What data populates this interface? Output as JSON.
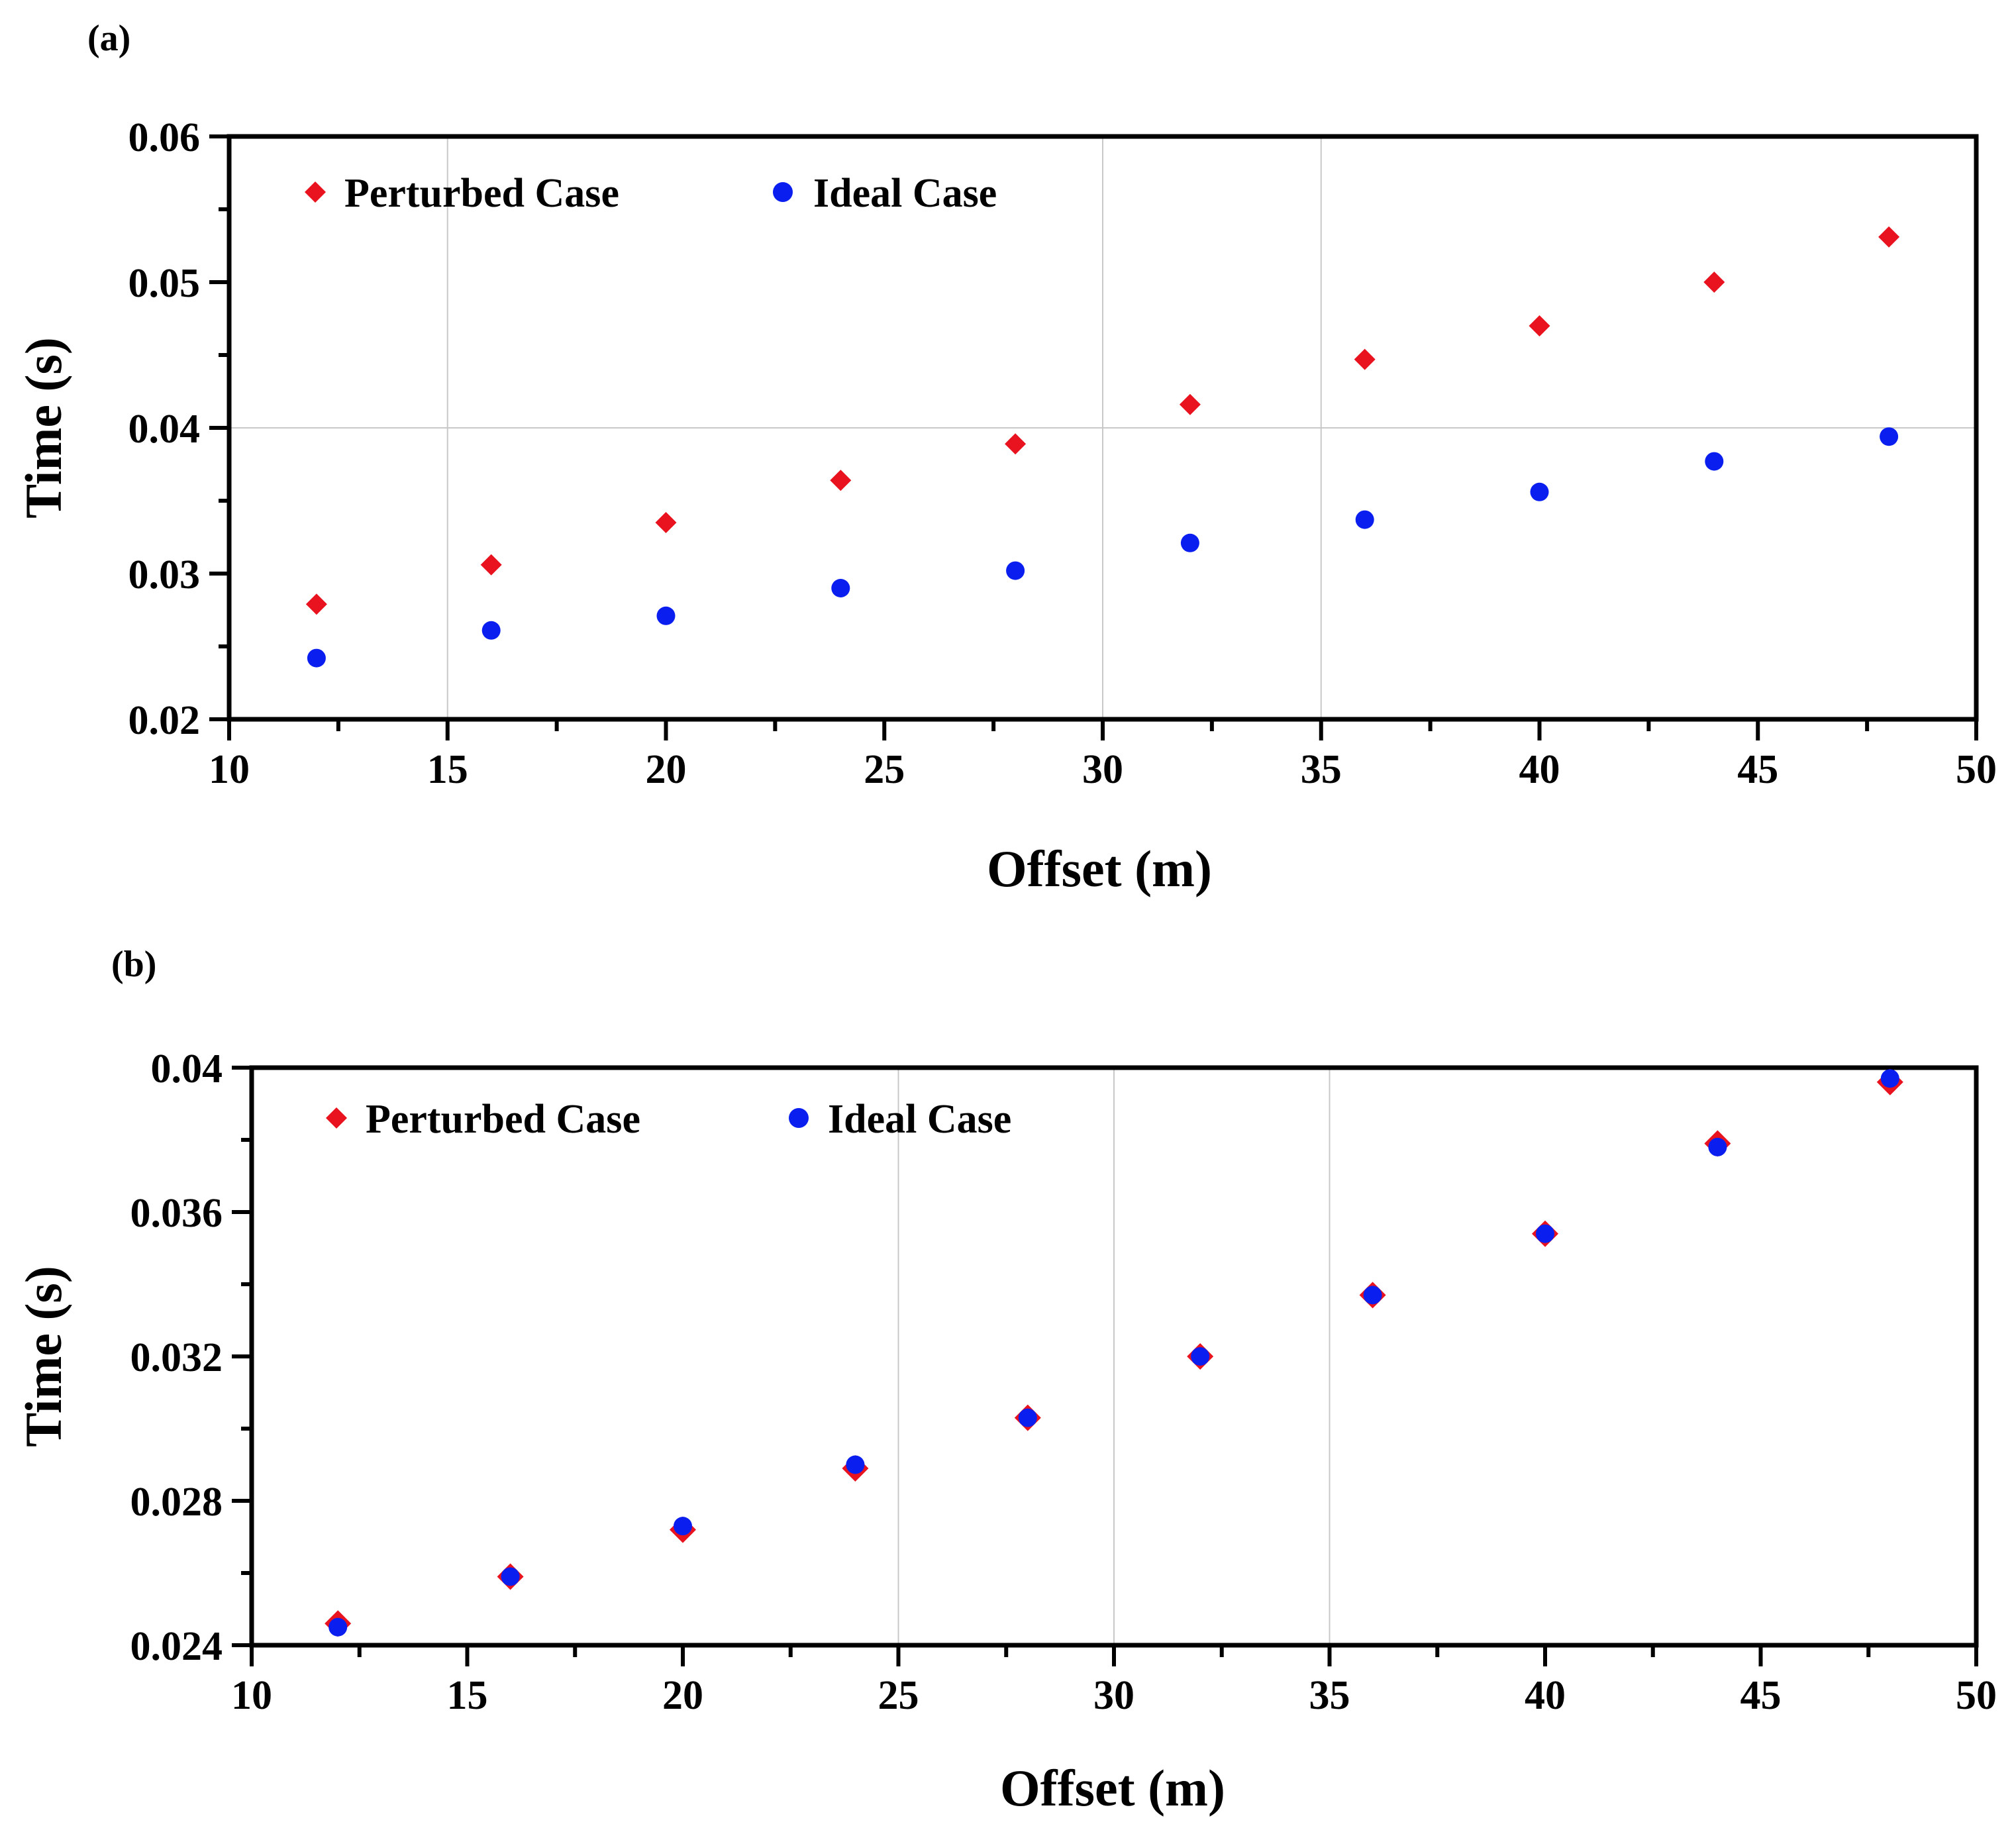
{
  "colors": {
    "perturbed": "#e8131f",
    "ideal": "#0a1ef0",
    "axis": "#000000",
    "grid": "#c8c8c8"
  },
  "chart_data": [
    {
      "panel_label": "(a)",
      "type": "scatter",
      "xlabel": "Offset (m)",
      "ylabel": "Time (s)",
      "xlim": [
        10,
        50
      ],
      "ylim": [
        0.02,
        0.06
      ],
      "x_ticks": [
        "10",
        "15",
        "20",
        "25",
        "30",
        "35",
        "40",
        "45",
        "50"
      ],
      "x_tick_values": [
        10,
        15,
        20,
        25,
        30,
        35,
        40,
        45,
        50
      ],
      "y_ticks": [
        "0.02",
        "0.03",
        "0.04",
        "0.05",
        "0.06"
      ],
      "y_tick_values": [
        0.02,
        0.03,
        0.04,
        0.05,
        0.06
      ],
      "grid": true,
      "legend_position": "top-left",
      "x": [
        12,
        16,
        20,
        24,
        28,
        32,
        36,
        40,
        44,
        48
      ],
      "series": [
        {
          "name": "Perturbed Case",
          "marker": "diamond",
          "color": "#e8131f",
          "values": [
            0.0279,
            0.0306,
            0.0335,
            0.0364,
            0.0389,
            0.0416,
            0.0447,
            0.047,
            0.05,
            0.0531
          ]
        },
        {
          "name": "Ideal Case",
          "marker": "circle",
          "color": "#0a1ef0",
          "values": [
            0.0242,
            0.0261,
            0.0271,
            0.029,
            0.0302,
            0.0321,
            0.0337,
            0.0356,
            0.0377,
            0.0394
          ]
        }
      ]
    },
    {
      "panel_label": "(b)",
      "type": "scatter",
      "xlabel": "Offset (m)",
      "ylabel": "Time (s)",
      "xlim": [
        10,
        50
      ],
      "ylim": [
        0.024,
        0.04
      ],
      "x_ticks": [
        "10",
        "15",
        "20",
        "25",
        "30",
        "35",
        "40",
        "45",
        "50"
      ],
      "x_tick_values": [
        10,
        15,
        20,
        25,
        30,
        35,
        40,
        45,
        50
      ],
      "y_ticks": [
        "0.024",
        "0.028",
        "0.032",
        "0.036",
        "0.04"
      ],
      "y_tick_values": [
        0.024,
        0.028,
        0.032,
        0.036,
        0.04
      ],
      "grid": true,
      "legend_position": "top-left",
      "x": [
        12,
        16,
        20,
        24,
        28,
        32,
        36,
        40,
        44,
        48
      ],
      "series": [
        {
          "name": "Perturbed Case",
          "marker": "diamond",
          "color": "#e8131f",
          "values": [
            0.0246,
            0.0259,
            0.0272,
            0.0289,
            0.0303,
            0.032,
            0.0337,
            0.0354,
            0.0379,
            0.0396
          ]
        },
        {
          "name": "Ideal Case",
          "marker": "circle",
          "color": "#0a1ef0",
          "values": [
            0.0245,
            0.0259,
            0.0273,
            0.029,
            0.0303,
            0.032,
            0.0337,
            0.0354,
            0.0378,
            0.0397
          ]
        }
      ]
    }
  ]
}
